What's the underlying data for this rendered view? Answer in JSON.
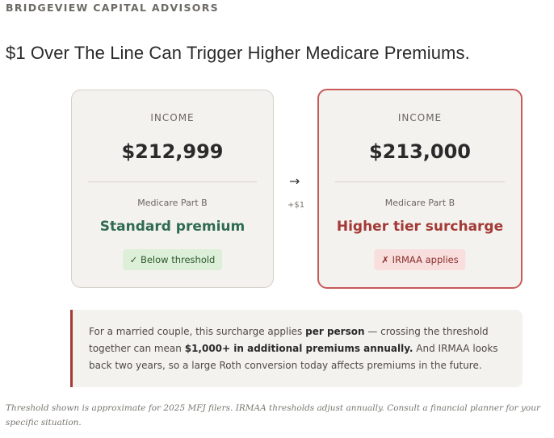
{
  "brand": "BRIDGEVIEW CAPITAL ADVISORS",
  "headline": "$1 Over The Line Can Trigger Higher Medicare Premiums.",
  "comparison": {
    "left": {
      "label": "INCOME",
      "amount": "$212,999",
      "sub_label": "Medicare Part B",
      "tier": "Standard premium",
      "badge_icon": "✓",
      "badge_text": "Below threshold"
    },
    "arrow": "→",
    "delta": "+$1",
    "right": {
      "label": "INCOME",
      "amount": "$213,000",
      "sub_label": "Medicare Part B",
      "tier": "Higher tier surcharge",
      "badge_icon": "✗",
      "badge_text": "IRMAA applies"
    }
  },
  "note": {
    "part1": "For a married couple, this surcharge applies ",
    "bold1": "per person",
    "part2": " — crossing the threshold together can mean ",
    "bold2": "$1,000+ in additional premiums annually.",
    "part3": " And IRMAA looks back two years, so a large Roth conversion today affects premiums in the future."
  },
  "footnote": "Threshold shown is approximate for 2025 MFJ filers. IRMAA thresholds adjust annually. Consult a financial planner for your specific situation.",
  "colors": {
    "accent_red": "#c85a5a",
    "standard_green": "#2f6b52",
    "surcharge_red": "#a33a36",
    "card_bg": "#f4f2ee"
  }
}
